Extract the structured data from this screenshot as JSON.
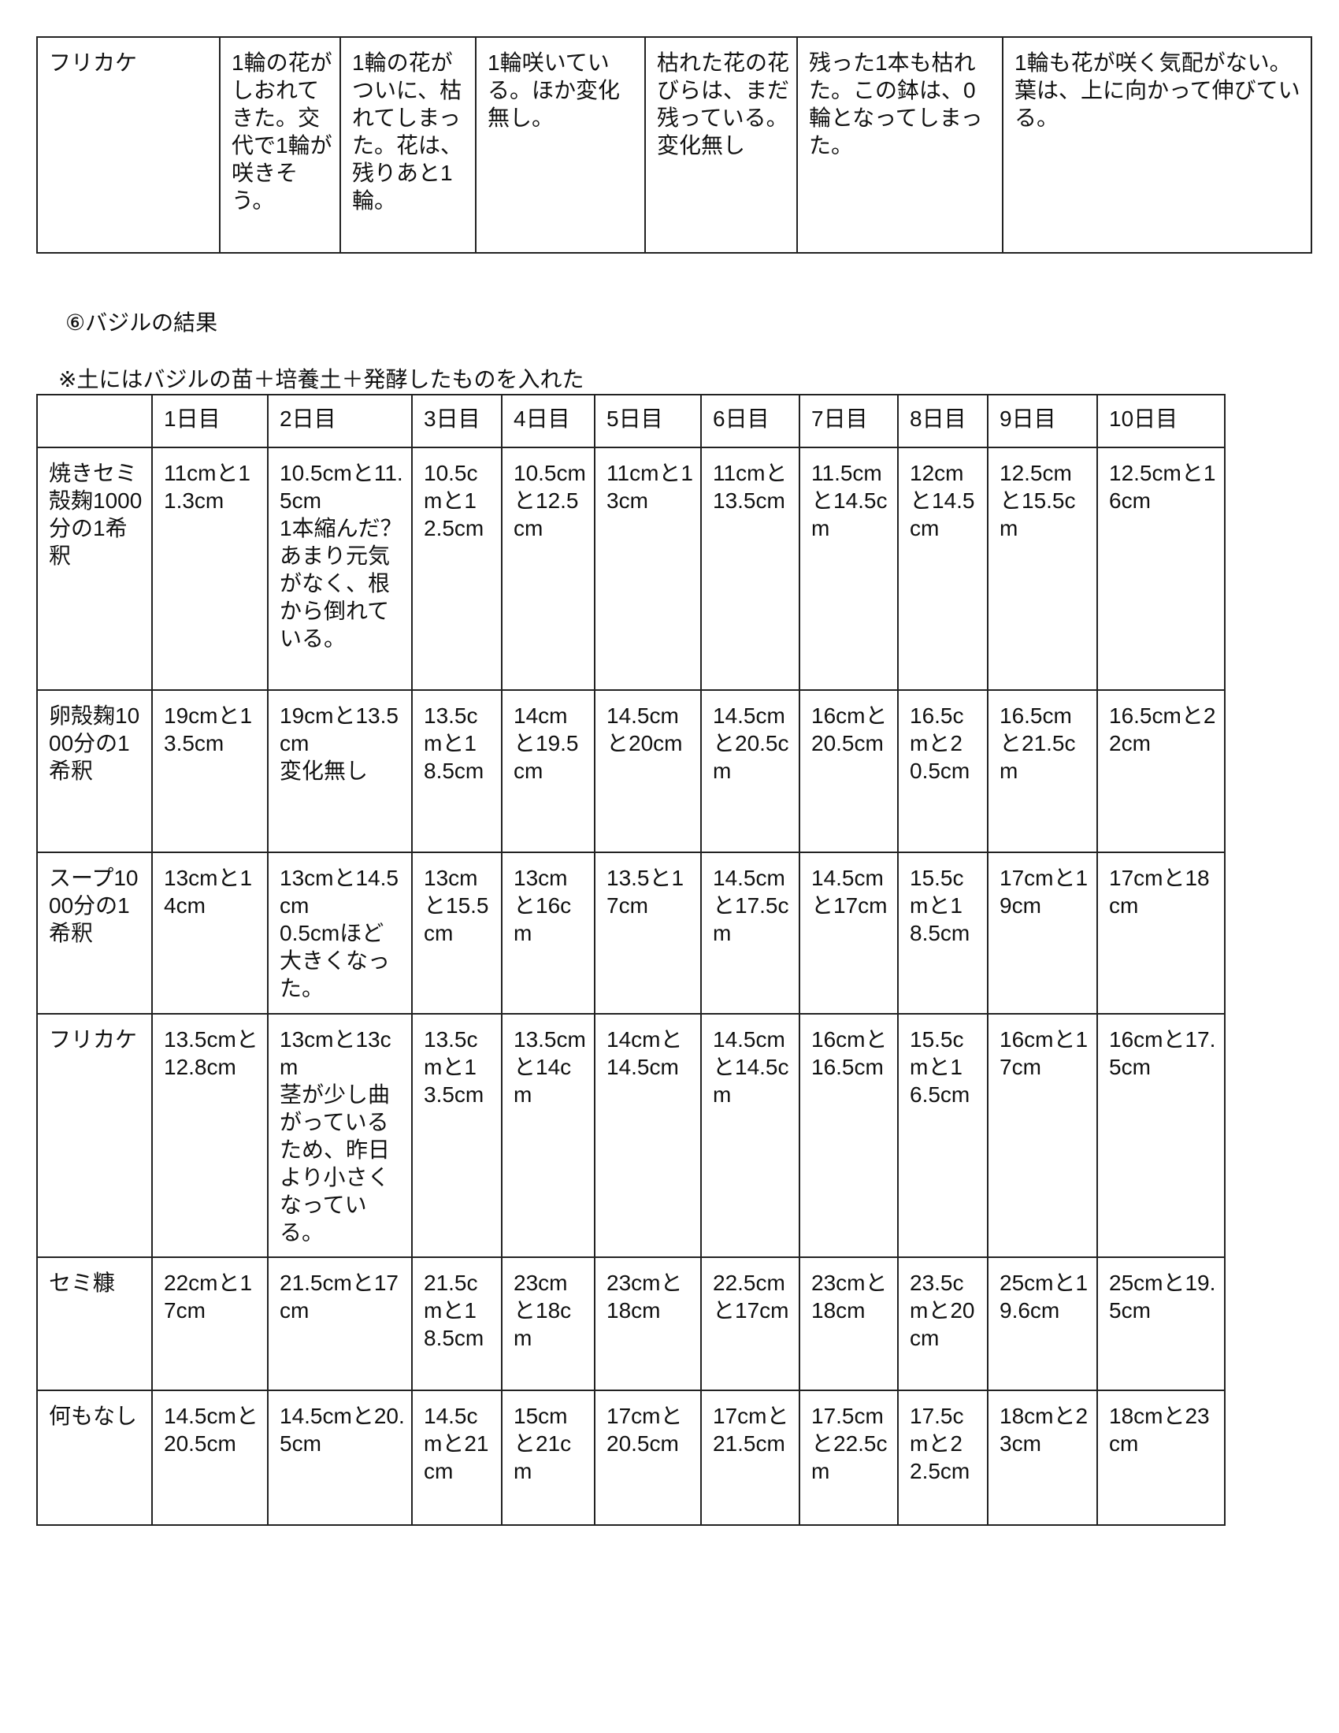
{
  "top_table": {
    "row": [
      "フリカケ",
      "1輪の花がしおれてきた。交代で1輪が咲きそう。",
      "1輪の花がついに、枯れてしまった。花は、残りあと1輪。",
      "1輪咲いている。ほか変化無し。",
      "枯れた花の花びらは、まだ残っている。変化無し",
      "残った1本も枯れた。この鉢は、0輪となってしまった。",
      "1輪も花が咲く気配がない。葉は、上に向かって伸びている。"
    ]
  },
  "basil": {
    "title": "⑥バジルの結果",
    "note": "※土にはバジルの苗＋培養土＋発酵したものを入れた",
    "headers": [
      "",
      "1日目",
      "2日目",
      "3日目",
      "4日目",
      "5日目",
      "6日目",
      "7日目",
      "8日目",
      "9日目",
      "10日目"
    ],
    "rows": [
      [
        "焼きセミ殻麹1000分の1希釈",
        "11cmと11.3cm",
        "10.5cmと11.5cm\n1本縮んだ？あまり元気がなく、根から倒れている。",
        "10.5cmと12.5cm",
        "10.5cmと12.5cm",
        "11cmと13cm",
        "11cmと13.5cm",
        "11.5cmと14.5cm",
        "12cmと14.5cm",
        "12.5cmと15.5cm",
        "12.5cmと16cm"
      ],
      [
        "卵殻麹1000分の1希釈",
        "19cmと13.5cm",
        "19cmと13.5cm\n変化無し",
        "13.5cmと18.5cm",
        "14cmと19.5cm",
        "14.5cmと20cm",
        "14.5cmと20.5cm",
        "16cmと20.5cm",
        "16.5cmと20.5cm",
        "16.5cmと21.5cm",
        "16.5cmと22cm"
      ],
      [
        "スープ1000分の1希釈",
        "13cmと14cm",
        "13cmと14.5cm\n0.5cmほど大きくなった。",
        "13cmと15.5cm",
        "13cmと16cm",
        "13.5と17cm",
        "14.5cmと17.5cm",
        "14.5cmと17cm",
        "15.5cmと18.5cm",
        "17cmと19cm",
        "17cmと18cm"
      ],
      [
        "フリカケ",
        "13.5cmと12.8cm",
        "13cmと13cm\n茎が少し曲がっているため、昨日より小さくなっている。",
        "13.5cmと13.5cm",
        "13.5cmと14cm",
        "14cmと14.5cm",
        "14.5cmと14.5cm",
        "16cmと16.5cm",
        "15.5cmと16.5cm",
        "16cmと17cm",
        "16cmと17.5cm"
      ],
      [
        "セミ糠",
        "22cmと17cm",
        "21.5cmと17cm",
        "21.5cmと18.5cm",
        "23cmと18cm",
        "23cmと18cm",
        "22.5cmと17cm",
        "23cmと18cm",
        "23.5cmと20cm",
        "25cmと19.6cm",
        "25cmと19.5cm"
      ],
      [
        "何もなし",
        "14.5cmと20.5cm",
        "14.5cmと20.5cm",
        "14.5cmと21cm",
        "15cmと21cm",
        "17cmと20.5cm",
        "17cmと21.5cm",
        "17.5cmと22.5cm",
        "17.5cmと22.5cm",
        "18cmと23cm",
        "18cmと23cm"
      ]
    ]
  }
}
